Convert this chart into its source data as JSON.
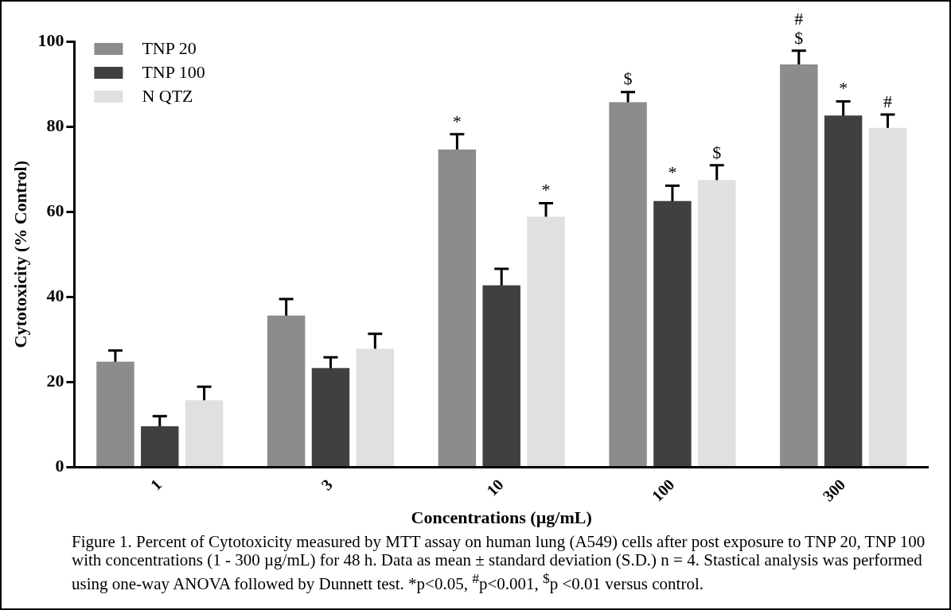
{
  "chart_data": {
    "type": "bar",
    "xlabel": "Concentrations (µg/mL)",
    "ylabel": "Cytotoxicity (% Control)",
    "categories": [
      "1",
      "3",
      "10",
      "100",
      "300"
    ],
    "series": [
      {
        "name": "TNP 20",
        "color": "#8c8c8c",
        "values": [
          24.8,
          35.6,
          74.6,
          85.7,
          94.6
        ],
        "errors": [
          2.6,
          3.9,
          3.6,
          2.4,
          3.2
        ],
        "value_labels": [
          null,
          null,
          "*",
          "$",
          "#\n$"
        ]
      },
      {
        "name": "TNP 100",
        "color": "#404040",
        "values": [
          9.6,
          23.3,
          42.7,
          62.5,
          82.6
        ],
        "errors": [
          2.4,
          2.5,
          3.9,
          3.6,
          3.3
        ],
        "value_labels": [
          null,
          null,
          null,
          "*",
          "*"
        ]
      },
      {
        "name": "N QTZ",
        "color": "#e0e0e0",
        "values": [
          15.7,
          27.8,
          58.8,
          67.4,
          79.7
        ],
        "errors": [
          3.2,
          3.5,
          3.2,
          3.5,
          3.1
        ],
        "value_labels": [
          null,
          null,
          "*",
          "$",
          "#"
        ]
      }
    ],
    "ylim": [
      0,
      100
    ],
    "yticks": [
      0,
      20,
      40,
      60,
      80,
      100
    ],
    "grid": false,
    "legend": "top left",
    "annotations": [
      "Figure 1. Percent of Cytotoxicity measured by MTT assay on human lung (A549) cells after post exposure to TNP 20, TNP 100 with concentrations (1 - 300 µg/mL) for 48 h. Data as mean ± standard deviation (S.D.) n = 4. Stastical analysis was performed using one-way ANOVA followed by Dunnett test.  *p<0.05, $^{#}$p<0.001, $^{$}$p <0.01 versus control."
    ]
  }
}
